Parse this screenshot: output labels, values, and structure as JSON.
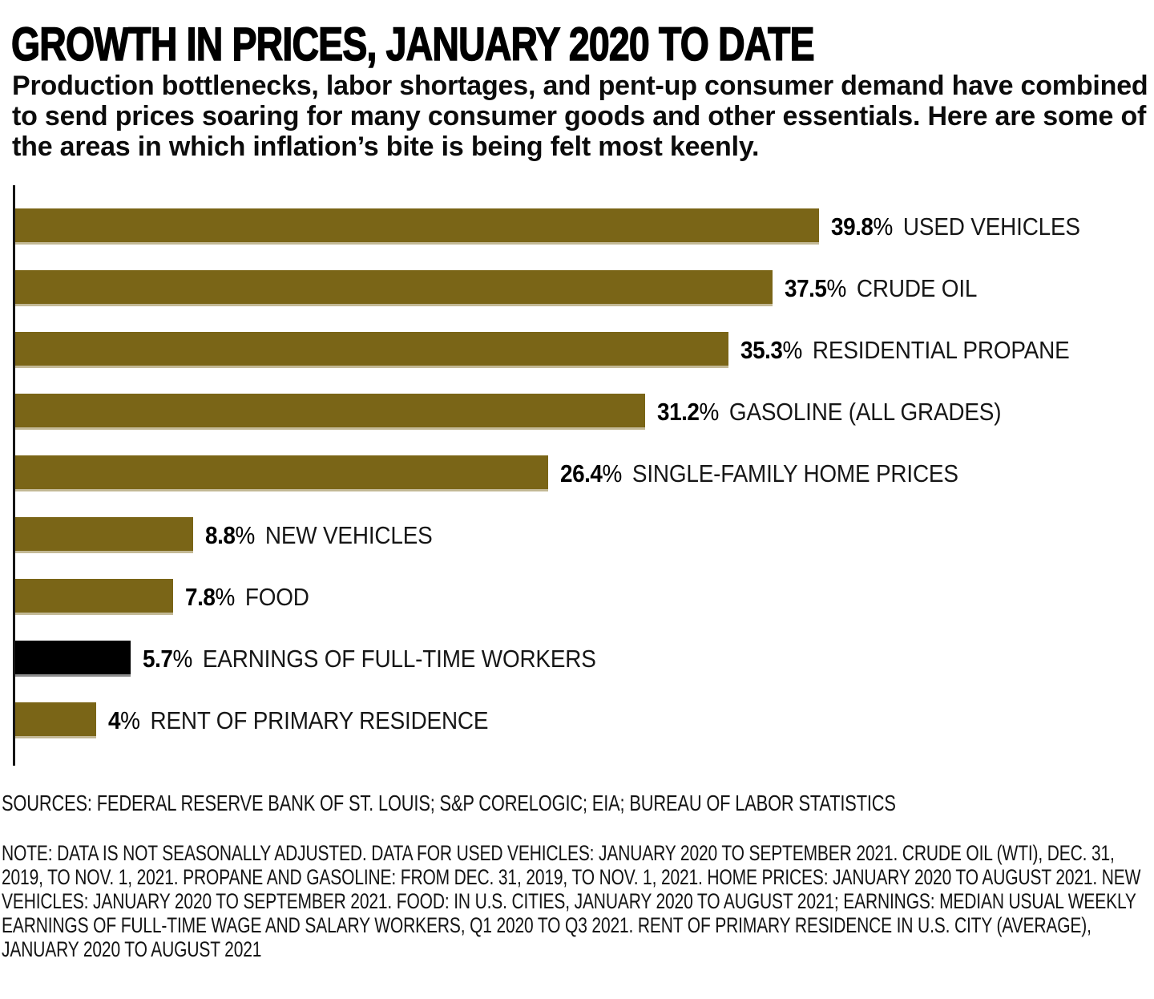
{
  "page": {
    "title": "GROWTH IN PRICES, JANUARY 2020 TO DATE",
    "subtitle": "Production bottlenecks, labor shortages, and pent-up consumer demand have combined to send prices soaring for many consumer goods and other essentials. Here are some of the areas in which inflation’s bite is being felt most keenly."
  },
  "colors": {
    "bar": "#7A6517",
    "bar_highlight": "#000000",
    "axis": "#161616",
    "text": "#0D0D0D",
    "background": "#FFFFFF"
  },
  "chart_data": {
    "type": "bar",
    "orientation": "horizontal",
    "title": "GROWTH IN PRICES, JANUARY 2020 TO DATE",
    "unit": "%",
    "xlim": [
      0,
      40
    ],
    "grid": false,
    "legend": "none",
    "value_labels_position": "right-of-bar",
    "categories": [
      "USED VEHICLES",
      "CRUDE OIL",
      "RESIDENTIAL PROPANE",
      "GASOLINE (ALL GRADES)",
      "SINGLE-FAMILY HOME PRICES",
      "NEW VEHICLES",
      "FOOD",
      "EARNINGS OF FULL-TIME WORKERS",
      "RENT OF PRIMARY RESIDENCE"
    ],
    "values": [
      39.8,
      37.5,
      35.3,
      31.2,
      26.4,
      8.8,
      7.8,
      5.7,
      4
    ],
    "value_labels": [
      "39.8",
      "37.5",
      "35.3",
      "31.2",
      "26.4",
      "8.8",
      "7.8",
      "5.7",
      "4"
    ],
    "highlight_index": 7,
    "bar_color": "#7A6517",
    "highlight_color": "#000000"
  },
  "footer": {
    "sources": "SOURCES: FEDERAL RESERVE BANK OF ST. LOUIS; S&P CORELOGIC; EIA; BUREAU OF LABOR STATISTICS",
    "note": "NOTE: DATA IS NOT SEASONALLY ADJUSTED. DATA FOR USED VEHICLES: JANUARY 2020 TO SEPTEMBER 2021. CRUDE OIL (WTI), DEC. 31, 2019, TO NOV. 1, 2021. PROPANE AND GASOLINE: FROM DEC. 31, 2019, TO NOV. 1, 2021. HOME PRICES: JANUARY 2020 TO AUGUST 2021. NEW VEHICLES: JANUARY 2020 TO SEPTEMBER 2021. FOOD: IN U.S. CITIES, JANUARY 2020 TO AUGUST 2021; EARNINGS: MEDIAN USUAL WEEKLY EARNINGS OF FULL-TIME WAGE AND SALARY WORKERS, Q1 2020 TO Q3 2021. RENT OF PRIMARY RESIDENCE IN U.S. CITY (AVERAGE), JANUARY 2020 TO AUGUST 2021"
  }
}
